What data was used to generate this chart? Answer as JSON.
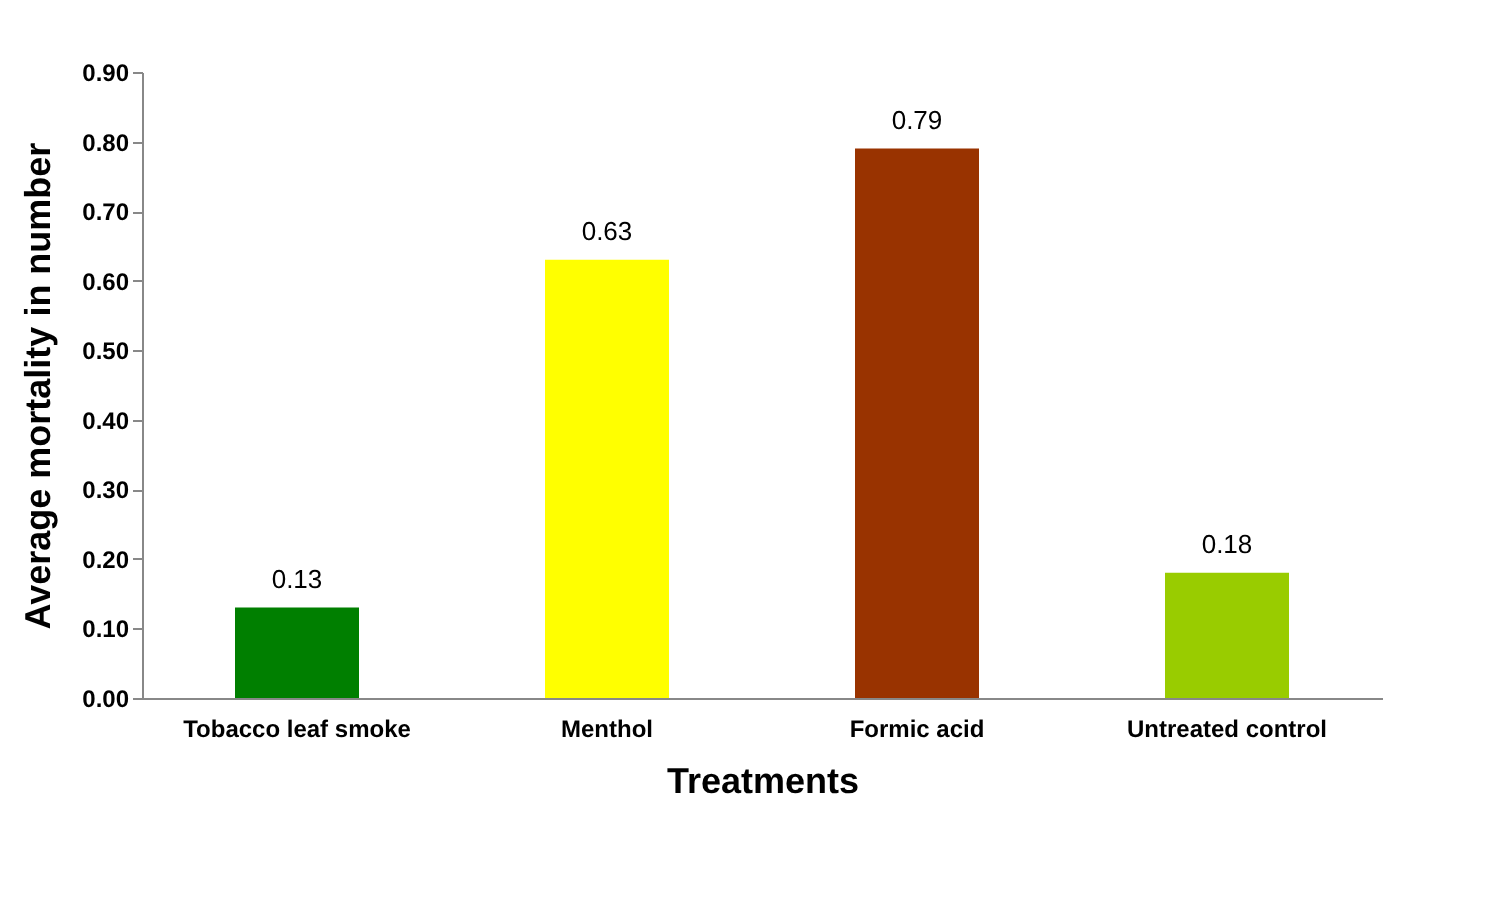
{
  "chart_data": {
    "type": "bar",
    "xlabel": "Treatments",
    "ylabel": "Average mortality in number",
    "categories": [
      "Tobacco leaf smoke",
      "Menthol",
      "Formic acid",
      "Untreated control"
    ],
    "values": [
      0.13,
      0.63,
      0.79,
      0.18
    ],
    "colors": [
      "#007f00",
      "#ffff00",
      "#993300",
      "#99cc00"
    ],
    "ylim": [
      0,
      0.9
    ],
    "yticks": [
      {
        "value": 0,
        "label": "0.00"
      },
      {
        "value": 0.1,
        "label": "0.10"
      },
      {
        "value": 0.2,
        "label": "0.20"
      },
      {
        "value": 0.3,
        "label": "0.30"
      },
      {
        "value": 0.4,
        "label": "0.40"
      },
      {
        "value": 0.5,
        "label": "0.50"
      },
      {
        "value": 0.6,
        "label": "0.60"
      },
      {
        "value": 0.7,
        "label": "0.70"
      },
      {
        "value": 0.8,
        "label": "0.80"
      },
      {
        "value": 0.9,
        "label": "0.90"
      }
    ],
    "data_labels": true,
    "grid": false
  }
}
